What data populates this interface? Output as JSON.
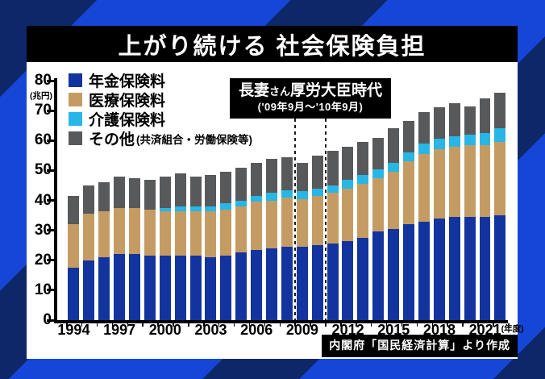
{
  "title": "上がり続ける 社会保険負担",
  "colors": {
    "pension": "#13349e",
    "medical": "#c49c63",
    "nursing": "#27b6e6",
    "other": "#58595b",
    "background_blue": "#1546d8",
    "background_navy": "#0d2768",
    "panel": "#ffffff",
    "title_bg": "#000000",
    "title_text": "#ffffff"
  },
  "legend": [
    {
      "id": "pension",
      "label": "年金保険料",
      "note": "",
      "color": "#13349e"
    },
    {
      "id": "medical",
      "label": "医療保険料",
      "note": "",
      "color": "#c49c63"
    },
    {
      "id": "nursing",
      "label": "介護保険料",
      "note": "",
      "color": "#27b6e6"
    },
    {
      "id": "other",
      "label": "その他",
      "note": "(共済組合・労働保険等)",
      "color": "#58595b"
    }
  ],
  "annotation": {
    "name": "長妻",
    "honorific": "さん",
    "role": "厚労大臣時代",
    "period": "('09年9月～'10年9月)"
  },
  "y_axis": {
    "unit": "(兆円)",
    "ticks": [
      0,
      10,
      20,
      30,
      40,
      50,
      60,
      70,
      80
    ],
    "max": 80
  },
  "x_axis": {
    "labeled_years": [
      1994,
      1997,
      2000,
      2003,
      2006,
      2009,
      2012,
      2015,
      2018,
      2021
    ],
    "suffix": "(年度)"
  },
  "source": "内閣府「国民経済計算」より作成",
  "chart_data": {
    "type": "bar",
    "stacked": true,
    "title": "上がり続ける 社会保険負担",
    "ylabel": "兆円",
    "ylim": [
      0,
      80
    ],
    "grid": false,
    "years": [
      1994,
      1995,
      1996,
      1997,
      1998,
      1999,
      2000,
      2001,
      2002,
      2003,
      2004,
      2005,
      2006,
      2007,
      2008,
      2009,
      2010,
      2011,
      2012,
      2013,
      2014,
      2015,
      2016,
      2017,
      2018,
      2019,
      2020,
      2021,
      2022
    ],
    "series": [
      {
        "name": "年金保険料",
        "color": "#13349e",
        "values": [
          17.5,
          20,
          21,
          22,
          22,
          21.5,
          21.5,
          21.5,
          21.5,
          21,
          21.5,
          22.5,
          23.5,
          24,
          24.5,
          24.5,
          25,
          25.5,
          26.5,
          27.5,
          29.5,
          30.5,
          32,
          33,
          34,
          34.5,
          34.5,
          34.5,
          35
        ]
      },
      {
        "name": "医療保険料",
        "color": "#c49c63",
        "values": [
          14.5,
          15.5,
          15.5,
          15.5,
          15.5,
          15.5,
          15,
          15,
          15,
          15.5,
          15.5,
          15.5,
          16,
          16,
          16.5,
          16,
          16.5,
          17,
          17.5,
          18,
          18,
          19,
          21,
          22.5,
          23,
          23.5,
          24,
          24,
          24.5
        ]
      },
      {
        "name": "介護保険料",
        "color": "#27b6e6",
        "values": [
          0,
          0,
          0,
          0,
          0,
          0,
          1,
          1.5,
          1.5,
          1.5,
          2,
          2,
          2,
          2.5,
          2.5,
          2.5,
          2.5,
          2.5,
          3,
          3,
          3,
          3,
          3,
          3.5,
          3.5,
          3.5,
          3.5,
          4,
          4.5
        ]
      },
      {
        "name": "その他(共済組合・労働保険等)",
        "color": "#58595b",
        "values": [
          9.5,
          9.5,
          9.5,
          10.5,
          10,
          10,
          10.5,
          11,
          10,
          10.5,
          10.5,
          11,
          11,
          11.5,
          11,
          9.5,
          11,
          11.5,
          11,
          11,
          10.5,
          11.5,
          10.5,
          10.5,
          10.5,
          11,
          9.5,
          11.5,
          12
        ]
      }
    ],
    "highlight_span": {
      "from_year": 2009,
      "to_year": 2010,
      "label": "長妻さん厚労大臣時代 ('09年9月～'10年9月)"
    }
  }
}
